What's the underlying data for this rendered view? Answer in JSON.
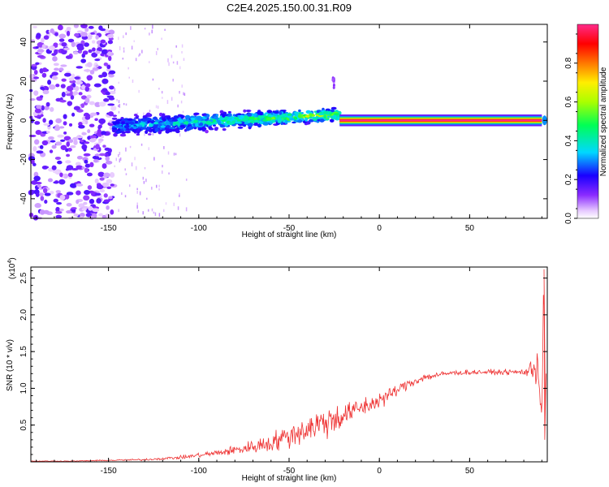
{
  "title": "C2E4.2025.150.00.31.R09",
  "chart_data": [
    {
      "type": "heatmap",
      "xlabel": "Height of straight line (km)",
      "ylabel": "Frequency (Hz)",
      "xlim": [
        -193,
        93
      ],
      "ylim": [
        -50,
        49
      ],
      "xticks": [
        -150,
        -100,
        -50,
        0,
        50
      ],
      "yticks": [
        -40,
        -20,
        0,
        20,
        40
      ],
      "colorbar": {
        "label": "Normalized spectral amplitude",
        "range": [
          0,
          1
        ],
        "ticks": [
          0.0,
          0.2,
          0.4,
          0.6,
          0.8
        ],
        "colormap": "rainbow (white → violet → blue → cyan → green → yellow → red → magenta)"
      },
      "features": [
        {
          "name": "broadband noise",
          "x_range": [
            -193,
            -147
          ],
          "freq_range": [
            -50,
            49
          ],
          "amplitude": [
            0.05,
            0.15
          ]
        },
        {
          "name": "drifting signal band",
          "x_range": [
            -147,
            -22
          ],
          "freq_center": [
            -3,
            3
          ],
          "freq_halfwidth": [
            7,
            4
          ],
          "amplitude": [
            0.2,
            0.5
          ]
        },
        {
          "name": "clean carrier line",
          "x_range": [
            -22,
            90
          ],
          "freq_center": 0,
          "freq_halfwidth": 1.5,
          "amplitude": 1.0
        }
      ]
    },
    {
      "type": "line",
      "xlabel": "Height of straight line (km)",
      "ylabel": "SNR (10 * v/v)",
      "y_multiplier": "(x10^4)",
      "xlim": [
        -193,
        93
      ],
      "ylim": [
        0,
        2.65
      ],
      "xticks": [
        -150,
        -100,
        -50,
        0,
        50
      ],
      "yticks": [
        0.5,
        1.0,
        1.5,
        2.0,
        2.5
      ],
      "color": "#ee3333",
      "series": [
        {
          "x": [
            -193,
            -170,
            -150,
            -130,
            -110,
            -90,
            -75,
            -60,
            -45,
            -35,
            -25,
            -18,
            -12,
            -5,
            5,
            15,
            25,
            40,
            55,
            70,
            80,
            85,
            88,
            90,
            91,
            92
          ],
          "y": [
            0.01,
            0.01,
            0.02,
            0.03,
            0.06,
            0.12,
            0.18,
            0.26,
            0.4,
            0.5,
            0.58,
            0.65,
            0.72,
            0.78,
            0.9,
            1.05,
            1.15,
            1.21,
            1.22,
            1.22,
            1.22,
            1.25,
            1.35,
            0.5,
            2.6,
            0.35
          ],
          "noise_amplitude": [
            0.005,
            0.005,
            0.008,
            0.012,
            0.02,
            0.04,
            0.07,
            0.12,
            0.16,
            0.2,
            0.2,
            0.14,
            0.12,
            0.12,
            0.09,
            0.06,
            0.05,
            0.03,
            0.03,
            0.03,
            0.04,
            0.15,
            0.3,
            0.25,
            0.0,
            0.15
          ]
        }
      ]
    }
  ]
}
